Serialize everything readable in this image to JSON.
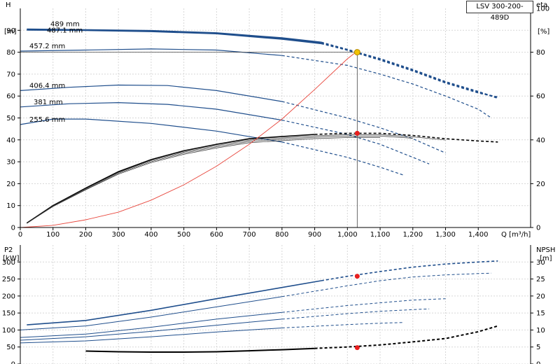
{
  "chart_data": [
    {
      "type": "line",
      "title": "LSV 300-200-489D",
      "xlabel": "Q [m³/h]",
      "ylabel_left": "H",
      "ylabel_left_unit": "[m]",
      "ylabel_right": "eta",
      "ylabel_right_unit": "[%]",
      "xlim": [
        0,
        1560
      ],
      "ylim_left": [
        0,
        100
      ],
      "ylim_right": [
        0,
        100
      ],
      "x_ticks": [
        "0",
        "100",
        "200",
        "300",
        "400",
        "500",
        "600",
        "700",
        "800",
        "900",
        "1,000",
        "1,100",
        "1,200",
        "1,300",
        "1,400"
      ],
      "y_ticks_left": [
        "0",
        "10",
        "20",
        "30",
        "40",
        "50",
        "60",
        "70",
        "80",
        "90"
      ],
      "y_ticks_right": [
        "0",
        "20",
        "40",
        "60",
        "80",
        "100"
      ],
      "grid": true,
      "head_curves": [
        {
          "name": "489 mm",
          "points": [
            [
              20,
              90.5
            ],
            [
              200,
              90.2
            ],
            [
              400,
              89.8
            ],
            [
              600,
              88.8
            ],
            [
              800,
              86.5
            ],
            [
              920,
              84.5
            ],
            [
              1000,
              81.2
            ],
            [
              1100,
              77
            ],
            [
              1200,
              72
            ],
            [
              1300,
              66.5
            ],
            [
              1400,
              62
            ],
            [
              1460,
              59
            ]
          ]
        },
        {
          "name": "487.1 mm",
          "points": [
            [
              20,
              90.2
            ],
            [
              200,
              90
            ],
            [
              400,
              89.5
            ],
            [
              600,
              88.5
            ],
            [
              800,
              86
            ],
            [
              920,
              84
            ],
            [
              1000,
              81
            ],
            [
              1100,
              76.5
            ],
            [
              1200,
              71.5
            ],
            [
              1300,
              66
            ],
            [
              1400,
              61.5
            ],
            [
              1460,
              59.5
            ]
          ]
        },
        {
          "name": "457.2 mm",
          "points": [
            [
              0,
              80.5
            ],
            [
              200,
              81
            ],
            [
              400,
              81.5
            ],
            [
              600,
              81
            ],
            [
              800,
              78.5
            ],
            [
              1000,
              74
            ],
            [
              1100,
              70
            ],
            [
              1200,
              65.5
            ],
            [
              1300,
              60
            ],
            [
              1400,
              54
            ],
            [
              1440,
              50
            ]
          ]
        },
        {
          "name": "406.4 mm",
          "points": [
            [
              0,
              62.5
            ],
            [
              150,
              64
            ],
            [
              300,
              65
            ],
            [
              450,
              64.8
            ],
            [
              600,
              62.5
            ],
            [
              800,
              57.5
            ],
            [
              1000,
              50
            ],
            [
              1100,
              45.5
            ],
            [
              1200,
              40.5
            ],
            [
              1300,
              34
            ]
          ]
        },
        {
          "name": "381 mm",
          "points": [
            [
              0,
              55
            ],
            [
              150,
              56.5
            ],
            [
              300,
              57
            ],
            [
              450,
              56.2
            ],
            [
              600,
              54
            ],
            [
              800,
              49
            ],
            [
              1000,
              42.5
            ],
            [
              1100,
              38
            ],
            [
              1200,
              32
            ],
            [
              1250,
              29
            ]
          ]
        },
        {
          "name": "255.6 mm",
          "points": [
            [
              0,
              47
            ],
            [
              100,
              49.5
            ],
            [
              200,
              49.5
            ],
            [
              400,
              47.5
            ],
            [
              600,
              44
            ],
            [
              800,
              39
            ],
            [
              1000,
              32
            ],
            [
              1100,
              27.5
            ],
            [
              1170,
              24
            ]
          ]
        }
      ],
      "eff_curve": {
        "points": [
          [
            20,
            2
          ],
          [
            100,
            10
          ],
          [
            200,
            18
          ],
          [
            300,
            25.5
          ],
          [
            400,
            31
          ],
          [
            500,
            35
          ],
          [
            600,
            38
          ],
          [
            700,
            40.5
          ],
          [
            800,
            41.5
          ],
          [
            900,
            42.5
          ],
          [
            1000,
            43
          ],
          [
            1100,
            43
          ],
          [
            1200,
            42
          ],
          [
            1300,
            40.5
          ],
          [
            1400,
            39.5
          ],
          [
            1460,
            39
          ]
        ]
      },
      "system_curve": {
        "points": [
          [
            0,
            0
          ],
          [
            100,
            1
          ],
          [
            200,
            3.5
          ],
          [
            300,
            7
          ],
          [
            400,
            12.5
          ],
          [
            500,
            19.5
          ],
          [
            600,
            28
          ],
          [
            700,
            38
          ],
          [
            800,
            49.5
          ],
          [
            900,
            63
          ],
          [
            1000,
            77
          ],
          [
            1030,
            80.5
          ]
        ]
      },
      "duty_point": {
        "q": 1030,
        "h": 80,
        "eta": 43
      }
    },
    {
      "type": "line",
      "xlabel": "",
      "ylabel_left": "P2",
      "ylabel_left_unit": "[kW]",
      "ylabel_right": "NPSH",
      "ylabel_right_unit": "[m]",
      "xlim": [
        0,
        1560
      ],
      "ylim_left": [
        0,
        350
      ],
      "ylim_right": [
        0,
        35
      ],
      "y_ticks_left": [
        "0",
        "50",
        "100",
        "150",
        "200",
        "250",
        "300"
      ],
      "y_ticks_right": [
        "0",
        "5",
        "10",
        "15",
        "20",
        "25",
        "30"
      ],
      "grid": true,
      "power_curves": [
        {
          "name": "489 mm",
          "points": [
            [
              20,
              115
            ],
            [
              200,
              128
            ],
            [
              400,
              158
            ],
            [
              600,
              192
            ],
            [
              800,
              225
            ],
            [
              920,
              245
            ],
            [
              1000,
              258
            ],
            [
              1100,
              272
            ],
            [
              1200,
              285
            ],
            [
              1300,
              294
            ],
            [
              1400,
              300
            ],
            [
              1460,
              303
            ]
          ]
        },
        {
          "name": "457.2 mm",
          "points": [
            [
              0,
              100
            ],
            [
              200,
              112
            ],
            [
              400,
              138
            ],
            [
              600,
              168
            ],
            [
              800,
              198
            ],
            [
              1000,
              230
            ],
            [
              1100,
              245
            ],
            [
              1200,
              256
            ],
            [
              1300,
              262
            ],
            [
              1400,
              266
            ],
            [
              1440,
              267
            ]
          ]
        },
        {
          "name": "406.4 mm",
          "points": [
            [
              0,
              78
            ],
            [
              200,
              88
            ],
            [
              400,
              108
            ],
            [
              600,
              132
            ],
            [
              800,
              152
            ],
            [
              1000,
              172
            ],
            [
              1100,
              180
            ],
            [
              1200,
              188
            ],
            [
              1300,
              192
            ]
          ]
        },
        {
          "name": "381 mm",
          "points": [
            [
              0,
              70
            ],
            [
              200,
              80
            ],
            [
              400,
              96
            ],
            [
              600,
              114
            ],
            [
              800,
              132
            ],
            [
              1000,
              148
            ],
            [
              1100,
              155
            ],
            [
              1200,
              160
            ],
            [
              1250,
              162
            ]
          ]
        },
        {
          "name": "255.6 mm",
          "points": [
            [
              0,
              62
            ],
            [
              200,
              68
            ],
            [
              400,
              80
            ],
            [
              600,
              94
            ],
            [
              800,
              106
            ],
            [
              1000,
              116
            ],
            [
              1100,
              120
            ],
            [
              1170,
              122
            ]
          ]
        }
      ],
      "npsh_curve": {
        "points": [
          [
            200,
            3.8
          ],
          [
            300,
            3.6
          ],
          [
            400,
            3.5
          ],
          [
            500,
            3.5
          ],
          [
            600,
            3.6
          ],
          [
            700,
            3.9
          ],
          [
            800,
            4.2
          ],
          [
            900,
            4.6
          ],
          [
            1000,
            5
          ],
          [
            1100,
            5.6
          ],
          [
            1200,
            6.5
          ],
          [
            1300,
            7.5
          ],
          [
            1400,
            9.5
          ],
          [
            1460,
            11.2
          ]
        ]
      },
      "duty_point": {
        "q": 1030,
        "p2": 258,
        "npsh": 4.8
      }
    }
  ],
  "palette": {
    "head": "#1f4e8c",
    "eff": "#000000",
    "system": "#e8463c",
    "duty_marker": "#e81e1e",
    "duty_top": "#f2c300",
    "grid": "#d7d7d7",
    "axis": "#000000"
  }
}
